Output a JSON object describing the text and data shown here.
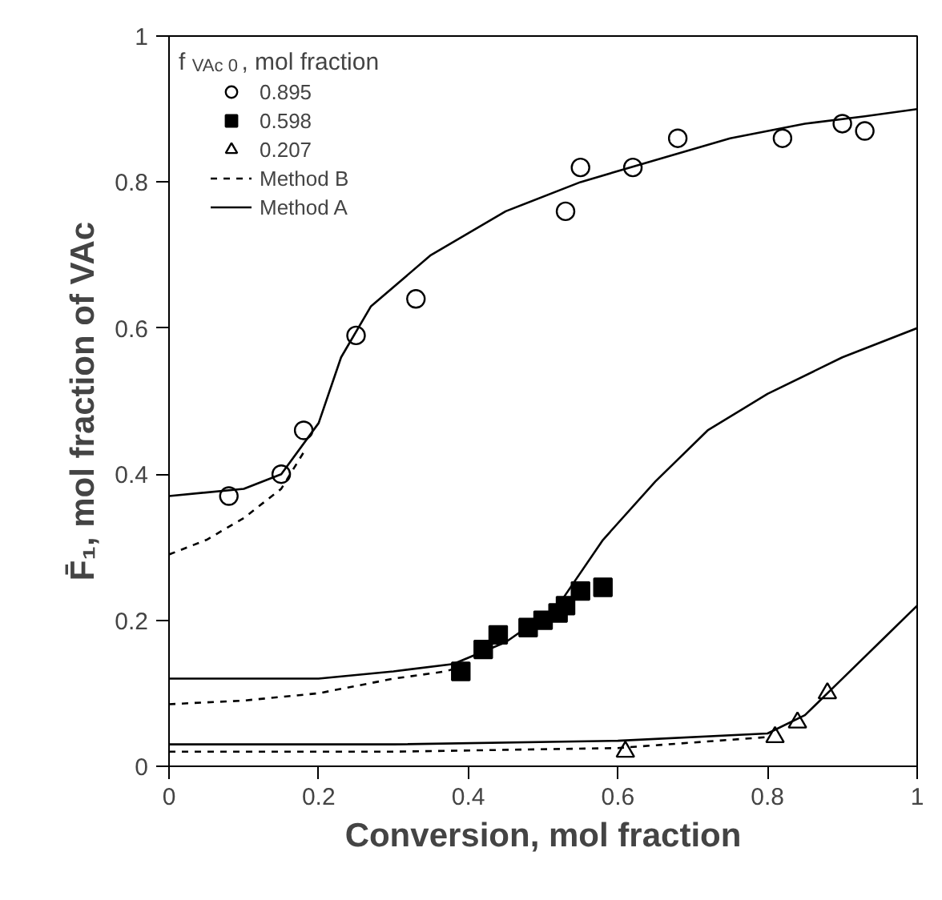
{
  "chart_data": {
    "type": "scatter",
    "xlabel": "Conversion, mol fraction",
    "ylabel": "F̄₁, mol fraction of VAc",
    "legend_title": "f$_{VAc 0}$, mol fraction",
    "xlim": [
      0,
      1
    ],
    "ylim": [
      0,
      1
    ],
    "xticks": [
      0,
      0.2,
      0.4,
      0.6,
      0.8,
      1
    ],
    "yticks": [
      0,
      0.2,
      0.4,
      0.6,
      0.8,
      1
    ],
    "grid": false,
    "legend": "top left",
    "series": [
      {
        "name": "0.895",
        "marker": "circle",
        "color": "#000000",
        "x": [
          0.08,
          0.15,
          0.18,
          0.25,
          0.33,
          0.53,
          0.55,
          0.62,
          0.68,
          0.82,
          0.9,
          0.93
        ],
        "values": [
          0.37,
          0.4,
          0.46,
          0.59,
          0.64,
          0.76,
          0.82,
          0.82,
          0.86,
          0.86,
          0.88,
          0.87
        ]
      },
      {
        "name": "0.598",
        "marker": "square",
        "color": "#000000",
        "x": [
          0.39,
          0.42,
          0.44,
          0.48,
          0.5,
          0.52,
          0.53,
          0.55,
          0.58
        ],
        "values": [
          0.13,
          0.16,
          0.18,
          0.19,
          0.2,
          0.21,
          0.22,
          0.24,
          0.245
        ]
      },
      {
        "name": "0.207",
        "marker": "triangle",
        "color": "#000000",
        "x": [
          0.61,
          0.81,
          0.84,
          0.88
        ],
        "values": [
          0.02,
          0.04,
          0.06,
          0.1
        ]
      },
      {
        "name": "Method B",
        "type": "line",
        "line_style": "dashed",
        "color": "#000000",
        "x": [
          0,
          0.05,
          0.1,
          0.15,
          0.18
        ],
        "values": [
          0.29,
          0.31,
          0.34,
          0.38,
          0.43
        ]
      },
      {
        "type": "line",
        "line_style": "dashed",
        "color": "#000000",
        "x": [
          0,
          0.1,
          0.2,
          0.3,
          0.37,
          0.4
        ],
        "values": [
          0.085,
          0.09,
          0.1,
          0.12,
          0.13,
          0.14
        ]
      },
      {
        "type": "line",
        "line_style": "dashed",
        "color": "#000000",
        "x": [
          0,
          0.3,
          0.6,
          0.8
        ],
        "values": [
          0.02,
          0.02,
          0.025,
          0.04
        ]
      },
      {
        "name": "Method A",
        "type": "line",
        "line_style": "solid",
        "color": "#000000",
        "x": [
          0,
          0.1,
          0.15,
          0.2,
          0.23,
          0.27,
          0.35,
          0.45,
          0.55,
          0.65,
          0.75,
          0.85,
          0.93,
          1.0
        ],
        "values": [
          0.37,
          0.38,
          0.4,
          0.47,
          0.56,
          0.63,
          0.7,
          0.76,
          0.8,
          0.83,
          0.86,
          0.88,
          0.89,
          0.9
        ]
      },
      {
        "type": "line",
        "line_style": "solid",
        "color": "#000000",
        "x": [
          0,
          0.2,
          0.3,
          0.38,
          0.45,
          0.52,
          0.58,
          0.65,
          0.72,
          0.8,
          0.9,
          1.0
        ],
        "values": [
          0.12,
          0.12,
          0.13,
          0.14,
          0.17,
          0.22,
          0.31,
          0.39,
          0.46,
          0.51,
          0.56,
          0.6
        ]
      },
      {
        "type": "line",
        "line_style": "solid",
        "color": "#000000",
        "x": [
          0,
          0.3,
          0.6,
          0.8,
          0.85,
          0.9,
          0.95,
          1.0
        ],
        "values": [
          0.03,
          0.03,
          0.035,
          0.045,
          0.07,
          0.12,
          0.17,
          0.22
        ]
      }
    ]
  }
}
